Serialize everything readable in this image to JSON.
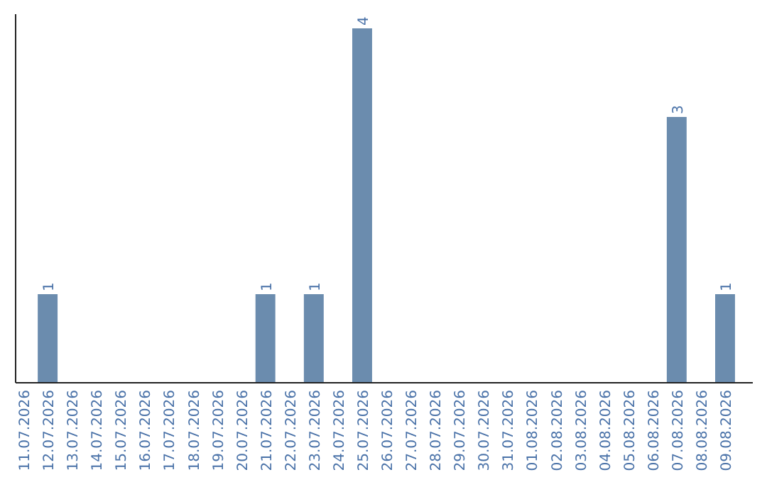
{
  "chart_data": {
    "type": "bar",
    "categories": [
      "11.07.2026",
      "12.07.2026",
      "13.07.2026",
      "14.07.2026",
      "15.07.2026",
      "16.07.2026",
      "17.07.2026",
      "18.07.2026",
      "19.07.2026",
      "20.07.2026",
      "21.07.2026",
      "22.07.2026",
      "23.07.2026",
      "24.07.2026",
      "25.07.2026",
      "26.07.2026",
      "27.07.2026",
      "28.07.2026",
      "29.07.2026",
      "30.07.2026",
      "31.07.2026",
      "01.08.2026",
      "02.08.2026",
      "03.08.2026",
      "04.08.2026",
      "05.08.2026",
      "06.08.2026",
      "07.08.2026",
      "08.08.2026",
      "09.08.2026"
    ],
    "values": [
      0,
      1,
      0,
      0,
      0,
      0,
      0,
      0,
      0,
      0,
      1,
      0,
      1,
      0,
      4,
      0,
      0,
      0,
      0,
      0,
      0,
      0,
      0,
      0,
      0,
      0,
      0,
      3,
      0,
      1
    ],
    "value_labels": [
      null,
      "1",
      null,
      null,
      null,
      null,
      null,
      null,
      null,
      null,
      "1",
      null,
      "1",
      null,
      "4",
      null,
      null,
      null,
      null,
      null,
      null,
      null,
      null,
      null,
      null,
      null,
      null,
      "3",
      null,
      "1"
    ],
    "color": "#6b8cae",
    "tick_labels": "x"
  }
}
